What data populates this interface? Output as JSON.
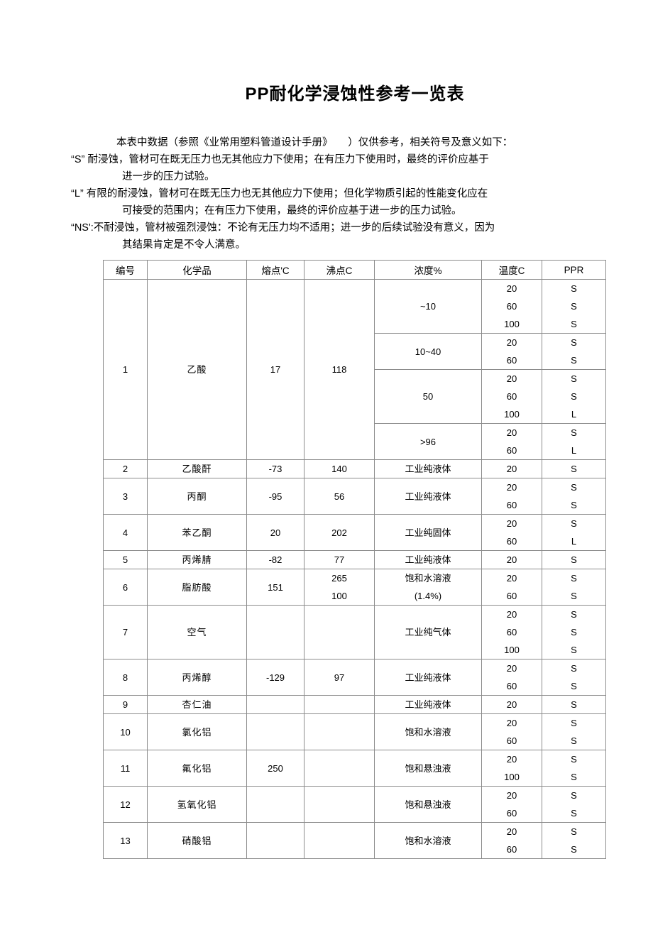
{
  "title": "PP耐化学浸蚀性参考一览表",
  "colors": {
    "border": "#8c8c8c",
    "text": "#000000",
    "background": "#ffffff"
  },
  "notes": {
    "lines": [
      "本表中数据（参照《业常用塑料管道设计手册》　　）仅供参考，相关符号及意义如下：",
      "“S” 耐浸蚀，管材可在既无压力也无其他应力下使用；在有压力下使用时，最终的评价应基于",
      "进一步的压力试验。",
      "“L” 有限的耐浸蚀，管材可在既无压力也无其他应力下使用；但化学物质引起的性能变化应在",
      "可接受的范围内；在有压力下使用，最终的评价应基于进一步的压力试验。",
      "“NS':不耐浸蚀，管材被强烈浸蚀：不论有无压力均不适用；进一步的后续试验没有意义，因为",
      "其结果肯定是不令人满意。"
    ]
  },
  "table": {
    "headers": [
      "编号",
      "化学品",
      "熔点'C",
      "沸点C",
      "浓度%",
      "温度C",
      "PPR"
    ],
    "rows": [
      {
        "no": "1",
        "chemical": "乙酸",
        "melting": "17",
        "boiling": "118",
        "groups": [
          {
            "concentration": "~10",
            "temps": [
              "20",
              "60",
              "100"
            ],
            "ratings": [
              "S",
              "S",
              "S"
            ]
          },
          {
            "concentration": "10~40",
            "temps": [
              "20",
              "60"
            ],
            "ratings": [
              "S",
              "S"
            ]
          },
          {
            "concentration": "50",
            "temps": [
              "20",
              "60",
              "100"
            ],
            "ratings": [
              "S",
              "S",
              "L"
            ]
          },
          {
            "concentration": ">96",
            "temps": [
              "20",
              "60"
            ],
            "ratings": [
              "S",
              "L"
            ]
          }
        ]
      },
      {
        "no": "2",
        "chemical": "乙酸酐",
        "melting": "-73",
        "boiling": "140",
        "groups": [
          {
            "concentration": "工业纯液体",
            "temps": [
              "20"
            ],
            "ratings": [
              "S"
            ]
          }
        ]
      },
      {
        "no": "3",
        "chemical": "丙酮",
        "melting": "-95",
        "boiling": "56",
        "groups": [
          {
            "concentration": "工业纯液体",
            "temps": [
              "20",
              "60"
            ],
            "ratings": [
              "S",
              "S"
            ]
          }
        ]
      },
      {
        "no": "4",
        "chemical": "苯乙酮",
        "melting": "20",
        "boiling": "202",
        "groups": [
          {
            "concentration": "工业纯固体",
            "temps": [
              "20",
              "60"
            ],
            "ratings": [
              "S",
              "L"
            ]
          }
        ]
      },
      {
        "no": "5",
        "chemical": "丙烯腈",
        "melting": "-82",
        "boiling": "77",
        "groups": [
          {
            "concentration": "工业纯液体",
            "temps": [
              "20"
            ],
            "ratings": [
              "S"
            ]
          }
        ]
      },
      {
        "no": "6",
        "chemical": "脂肪酸",
        "melting": "151",
        "boiling": [
          "265",
          "100"
        ],
        "groups": [
          {
            "concentration": [
              "饱和水溶液",
              "(1.4%)"
            ],
            "temps": [
              "20",
              "60"
            ],
            "ratings": [
              "S",
              "S"
            ]
          }
        ]
      },
      {
        "no": "7",
        "chemical": "空气",
        "melting": "",
        "boiling": "",
        "groups": [
          {
            "concentration": "工业纯气体",
            "temps": [
              "20",
              "60",
              "100"
            ],
            "ratings": [
              "S",
              "S",
              "S"
            ]
          }
        ]
      },
      {
        "no": "8",
        "chemical": "丙烯醇",
        "melting": "-129",
        "boiling": "97",
        "groups": [
          {
            "concentration": "工业纯液体",
            "temps": [
              "20",
              "60"
            ],
            "ratings": [
              "S",
              "S"
            ]
          }
        ]
      },
      {
        "no": "9",
        "chemical": "杏仁油",
        "melting": "",
        "boiling": "",
        "groups": [
          {
            "concentration": "工业纯液体",
            "temps": [
              "20"
            ],
            "ratings": [
              "S"
            ]
          }
        ]
      },
      {
        "no": "10",
        "chemical": "氯化铝",
        "melting": "",
        "boiling": "",
        "groups": [
          {
            "concentration": "饱和水溶液",
            "temps": [
              "20",
              "60"
            ],
            "ratings": [
              "S",
              "S"
            ]
          }
        ]
      },
      {
        "no": "11",
        "chemical": "氟化铝",
        "melting": "250",
        "boiling": "",
        "groups": [
          {
            "concentration": "饱和悬浊液",
            "temps": [
              "20",
              "100"
            ],
            "ratings": [
              "S",
              "S"
            ]
          }
        ]
      },
      {
        "no": "12",
        "chemical": "氢氧化铝",
        "melting": "",
        "boiling": "",
        "groups": [
          {
            "concentration": "饱和悬浊液",
            "temps": [
              "20",
              "60"
            ],
            "ratings": [
              "S",
              "S"
            ]
          }
        ]
      },
      {
        "no": "13",
        "chemical": "硝酸铝",
        "melting": "",
        "boiling": "",
        "groups": [
          {
            "concentration": "饱和水溶液",
            "temps": [
              "20",
              "60"
            ],
            "ratings": [
              "S",
              "S"
            ]
          }
        ]
      }
    ]
  }
}
